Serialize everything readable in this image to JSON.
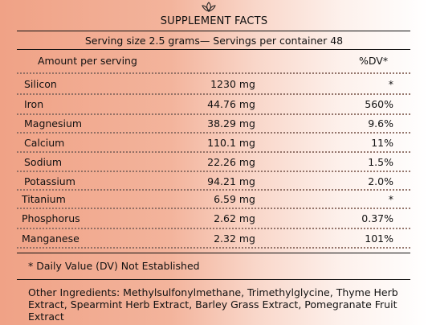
{
  "header": {
    "logo_icon": "lotus-icon",
    "title": "SUPPLEMENT FACTS",
    "serving": "Serving size 2.5 grams— Servings per container 48"
  },
  "table": {
    "col_amount": "Amount per serving",
    "col_dv": "%DV*",
    "rows": [
      {
        "name": "Silicon",
        "amount": "1230 mg",
        "dv": "*"
      },
      {
        "name": "Iron",
        "amount": "44.76 mg",
        "dv": "560%"
      },
      {
        "name": "Magnesium",
        "amount": "38.29 mg",
        "dv": "9.6%"
      },
      {
        "name": "Calcium",
        "amount": "110.1 mg",
        "dv": "11%"
      },
      {
        "name": "Sodium",
        "amount": "22.26 mg",
        "dv": "1.5%"
      },
      {
        "name": "Potassium",
        "amount": "94.21 mg",
        "dv": "2.0%"
      },
      {
        "name": "Titanium",
        "amount": "6.59 mg",
        "dv": "*"
      },
      {
        "name": "Phosphorus",
        "amount": "2.62 mg",
        "dv": "0.37%"
      },
      {
        "name": "Manganese",
        "amount": "2.32 mg",
        "dv": "101%"
      }
    ]
  },
  "footer": {
    "note": "* Daily Value (DV) Not Established",
    "ingredients": "Other Ingredients: Methylsulfonylmethane, Trimethylglycine, Thyme Herb Extract, Spearmint Herb Extract, Barley Grass Extract, Pomegranate Fruit Extract"
  }
}
